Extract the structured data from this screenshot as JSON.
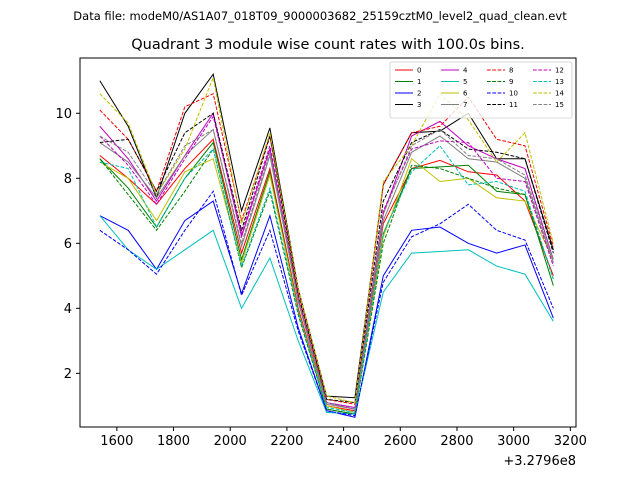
{
  "header": {
    "suptitle": "Data file: modeM0/AS1A07_018T09_9000003682_25159cztM0_level2_quad_clean.evt",
    "title": "Quadrant 3 module wise count rates with 100.0s bins."
  },
  "chart_data": {
    "type": "line",
    "title": "Quadrant 3 module wise count rates with 100.0s bins.",
    "xlabel": "",
    "ylabel": "",
    "x_offset_label": "+3.2796e8",
    "xlim": [
      1470,
      3220
    ],
    "ylim": [
      0.35,
      11.7
    ],
    "xticks": [
      1600,
      1800,
      2000,
      2200,
      2400,
      2600,
      2800,
      3000,
      3200
    ],
    "yticks": [
      2,
      4,
      6,
      8,
      10
    ],
    "grid": false,
    "legend": {
      "location": "upper right",
      "columns": 4
    },
    "x": [
      1540,
      1640,
      1740,
      1840,
      1940,
      2040,
      2140,
      2240,
      2340,
      2440,
      2540,
      2640,
      2740,
      2840,
      2940,
      3040,
      3140
    ],
    "series": [
      {
        "name": "0",
        "color": "#ff0000",
        "dash": "solid",
        "values": [
          8.7,
          8.0,
          7.2,
          8.3,
          9.2,
          5.7,
          8.3,
          4.0,
          1.0,
          0.85,
          6.6,
          8.3,
          8.55,
          8.2,
          8.1,
          7.3,
          5.0
        ]
      },
      {
        "name": "1",
        "color": "#008000",
        "dash": "solid",
        "values": [
          8.6,
          7.7,
          6.5,
          8.0,
          9.1,
          5.5,
          8.2,
          3.9,
          0.9,
          0.75,
          6.3,
          8.3,
          8.35,
          8.4,
          7.6,
          7.5,
          4.7
        ]
      },
      {
        "name": "2",
        "color": "#0000ff",
        "dash": "solid",
        "values": [
          6.85,
          6.4,
          5.2,
          6.7,
          7.3,
          4.45,
          6.85,
          3.4,
          0.85,
          0.65,
          5.0,
          6.4,
          6.5,
          6.0,
          5.7,
          5.95,
          3.7
        ]
      },
      {
        "name": "3",
        "color": "#000000",
        "dash": "solid",
        "values": [
          11.0,
          9.6,
          7.4,
          10.0,
          11.2,
          7.0,
          9.55,
          4.6,
          1.3,
          1.25,
          7.8,
          9.4,
          9.45,
          10.0,
          8.6,
          8.6,
          5.8
        ]
      },
      {
        "name": "4",
        "color": "#bf00bf",
        "dash": "solid",
        "values": [
          9.6,
          8.6,
          7.3,
          8.7,
          10.0,
          6.2,
          8.9,
          4.3,
          1.1,
          0.95,
          6.9,
          9.3,
          9.75,
          9.0,
          8.6,
          8.3,
          5.5
        ]
      },
      {
        "name": "5",
        "color": "#00bfbf",
        "dash": "solid",
        "values": [
          6.85,
          5.8,
          5.2,
          5.8,
          6.4,
          4.0,
          5.55,
          3.0,
          0.8,
          0.75,
          4.5,
          5.7,
          5.75,
          5.8,
          5.3,
          5.05,
          3.6
        ]
      },
      {
        "name": "6",
        "color": "#bfbf00",
        "dash": "solid",
        "values": [
          8.5,
          8.0,
          6.7,
          8.2,
          8.6,
          5.4,
          8.1,
          3.9,
          1.0,
          0.8,
          6.2,
          8.6,
          7.9,
          8.0,
          7.4,
          7.3,
          5.5
        ]
      },
      {
        "name": "7",
        "color": "#808080",
        "dash": "solid",
        "values": [
          9.1,
          8.5,
          7.4,
          8.7,
          9.5,
          5.9,
          8.7,
          4.2,
          1.05,
          0.9,
          6.7,
          8.8,
          9.3,
          8.6,
          8.5,
          8.0,
          5.4
        ]
      },
      {
        "name": "8",
        "color": "#ff0000",
        "dash": "dashed",
        "values": [
          10.1,
          9.2,
          7.6,
          10.2,
          10.6,
          6.7,
          9.3,
          4.5,
          1.2,
          1.05,
          7.8,
          9.4,
          9.6,
          10.5,
          9.2,
          9.0,
          5.9
        ]
      },
      {
        "name": "9",
        "color": "#008000",
        "dash": "dashed",
        "values": [
          8.6,
          7.5,
          6.4,
          7.6,
          8.9,
          5.25,
          7.6,
          3.8,
          0.9,
          0.75,
          6.0,
          8.4,
          8.3,
          8.0,
          7.7,
          7.5,
          4.9
        ]
      },
      {
        "name": "10",
        "color": "#0000ff",
        "dash": "dashed",
        "values": [
          6.4,
          5.8,
          5.05,
          6.4,
          7.6,
          4.4,
          6.4,
          3.3,
          0.85,
          0.7,
          4.8,
          6.2,
          6.6,
          7.2,
          6.4,
          6.1,
          4.0
        ]
      },
      {
        "name": "11",
        "color": "#000000",
        "dash": "dashed",
        "values": [
          9.1,
          9.2,
          7.6,
          9.4,
          10.0,
          6.4,
          9.3,
          4.4,
          1.2,
          1.1,
          7.3,
          9.1,
          9.5,
          8.9,
          8.8,
          8.6,
          5.7
        ]
      },
      {
        "name": "12",
        "color": "#bf00bf",
        "dash": "dashed",
        "values": [
          9.3,
          8.4,
          7.2,
          8.6,
          9.9,
          6.3,
          9.0,
          4.3,
          1.1,
          0.9,
          7.0,
          8.9,
          9.15,
          9.1,
          8.0,
          7.9,
          5.3
        ]
      },
      {
        "name": "13",
        "color": "#00bfbf",
        "dash": "dashed",
        "values": [
          8.5,
          8.3,
          6.5,
          8.0,
          8.9,
          5.3,
          7.7,
          3.9,
          0.95,
          0.8,
          6.3,
          8.2,
          9.0,
          7.8,
          7.9,
          7.6,
          4.9
        ]
      },
      {
        "name": "14",
        "color": "#bfbf00",
        "dash": "dashed",
        "values": [
          10.6,
          9.7,
          7.5,
          8.9,
          11.1,
          6.6,
          9.4,
          4.6,
          1.3,
          1.1,
          7.9,
          9.0,
          10.6,
          9.8,
          8.5,
          9.4,
          6.0
        ]
      },
      {
        "name": "15",
        "color": "#808080",
        "dash": "dashed",
        "values": [
          9.3,
          8.8,
          7.5,
          9.0,
          9.5,
          6.0,
          8.8,
          4.3,
          1.1,
          0.9,
          6.9,
          9.0,
          9.5,
          8.7,
          8.6,
          8.1,
          5.5
        ]
      }
    ]
  }
}
